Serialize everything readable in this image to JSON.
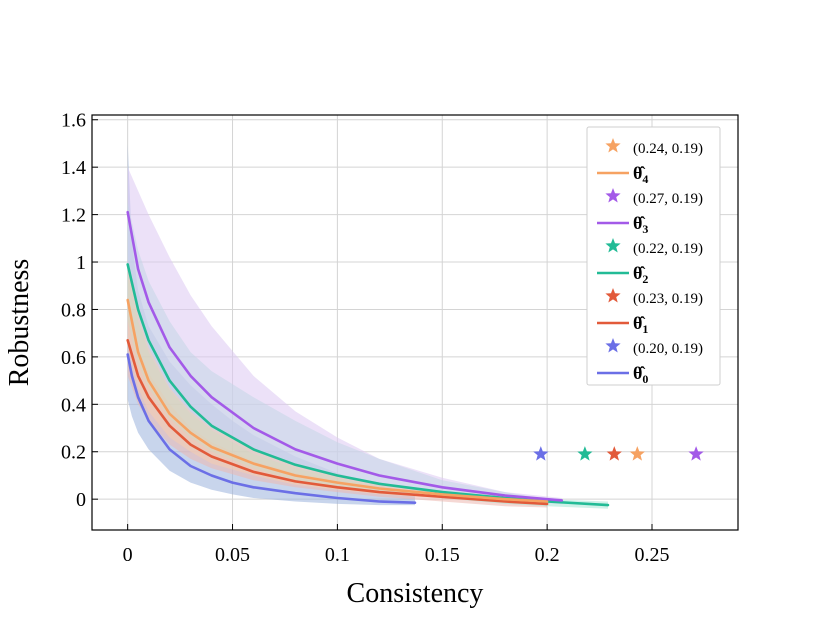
{
  "chart_data": {
    "type": "line",
    "title": "",
    "xlabel": "Consistency",
    "ylabel": "Robustness",
    "xlim": [
      -0.017,
      0.291
    ],
    "ylim": [
      -0.13,
      1.62
    ],
    "xticks": [
      0,
      0.05,
      0.1,
      0.15,
      0.2,
      0.25
    ],
    "xtick_labels": [
      "0",
      "0.05",
      "0.1",
      "0.15",
      "0.2",
      "0.25"
    ],
    "yticks": [
      0,
      0.2,
      0.4,
      0.6,
      0.8,
      1,
      1.2,
      1.4,
      1.6
    ],
    "ytick_labels": [
      "0",
      "0.2",
      "0.4",
      "0.6",
      "0.8",
      "1",
      "1.2",
      "1.4",
      "1.6"
    ],
    "grid": true,
    "legend_position": "top-right",
    "series": [
      {
        "name": "θ̂0",
        "label_base": "θ̂",
        "label_sub": "0",
        "color": "#6b6fe6",
        "x": [
          0,
          0.002,
          0.005,
          0.01,
          0.02,
          0.03,
          0.04,
          0.05,
          0.06,
          0.08,
          0.1,
          0.12,
          0.137
        ],
        "y": [
          0.61,
          0.52,
          0.43,
          0.33,
          0.21,
          0.14,
          0.1,
          0.07,
          0.05,
          0.025,
          0.005,
          -0.01,
          -0.015
        ],
        "band": {
          "upper": [
            1.5,
            1.08,
            0.88,
            0.73,
            0.58,
            0.48,
            0.4,
            0.33,
            0.27,
            0.18,
            0.11,
            0.06,
            0.03
          ],
          "lower": [
            0.42,
            0.35,
            0.28,
            0.21,
            0.12,
            0.07,
            0.04,
            0.02,
            0.005,
            -0.01,
            -0.02,
            -0.025,
            -0.025
          ],
          "color": "#9ab3dd"
        },
        "marker": {
          "x": 0.197,
          "y": 0.19,
          "label": "(0.20, 0.19)"
        }
      },
      {
        "name": "θ̂1",
        "label_base": "θ̂",
        "label_sub": "1",
        "color": "#e25a3a",
        "x": [
          0,
          0.005,
          0.01,
          0.02,
          0.03,
          0.04,
          0.06,
          0.08,
          0.1,
          0.12,
          0.15,
          0.18,
          0.2
        ],
        "y": [
          0.67,
          0.52,
          0.43,
          0.31,
          0.23,
          0.18,
          0.115,
          0.075,
          0.05,
          0.03,
          0.01,
          -0.01,
          -0.02
        ],
        "band": {
          "upper": [
            0.8,
            0.64,
            0.53,
            0.4,
            0.3,
            0.24,
            0.16,
            0.11,
            0.08,
            0.055,
            0.03,
            0.01,
            0.0
          ],
          "lower": [
            0.52,
            0.4,
            0.33,
            0.23,
            0.17,
            0.13,
            0.08,
            0.05,
            0.03,
            0.01,
            -0.01,
            -0.03,
            -0.035
          ],
          "color": "#ecb8b0"
        },
        "marker": {
          "x": 0.232,
          "y": 0.19,
          "label": "(0.23, 0.19)"
        }
      },
      {
        "name": "θ̂2",
        "label_base": "θ̂",
        "label_sub": "2",
        "color": "#22bb96",
        "x": [
          0,
          0.005,
          0.01,
          0.02,
          0.03,
          0.04,
          0.06,
          0.08,
          0.1,
          0.12,
          0.15,
          0.18,
          0.2,
          0.229
        ],
        "y": [
          0.99,
          0.8,
          0.67,
          0.5,
          0.39,
          0.31,
          0.21,
          0.145,
          0.1,
          0.065,
          0.03,
          0.005,
          -0.01,
          -0.025
        ],
        "band": {
          "upper": [
            1.25,
            1.05,
            0.92,
            0.75,
            0.62,
            0.54,
            0.43,
            0.33,
            0.24,
            0.17,
            0.08,
            0.03,
            0.0,
            -0.01
          ],
          "lower": [
            0.75,
            0.57,
            0.47,
            0.34,
            0.26,
            0.2,
            0.13,
            0.08,
            0.05,
            0.03,
            0.005,
            -0.02,
            -0.03,
            -0.04
          ],
          "color": "#a6e6d5"
        },
        "marker": {
          "x": 0.218,
          "y": 0.19,
          "label": "(0.22, 0.19)"
        }
      },
      {
        "name": "θ̂3",
        "label_base": "θ̂",
        "label_sub": "3",
        "color": "#a35ae8",
        "x": [
          0,
          0.005,
          0.01,
          0.02,
          0.03,
          0.04,
          0.06,
          0.08,
          0.1,
          0.12,
          0.15,
          0.18,
          0.207
        ],
        "y": [
          1.21,
          0.97,
          0.83,
          0.64,
          0.52,
          0.43,
          0.3,
          0.21,
          0.15,
          0.1,
          0.05,
          0.015,
          -0.005
        ],
        "band": {
          "upper": [
            1.4,
            1.3,
            1.2,
            1.02,
            0.86,
            0.73,
            0.52,
            0.37,
            0.26,
            0.17,
            0.09,
            0.03,
            0.005
          ],
          "lower": [
            0.95,
            0.75,
            0.62,
            0.46,
            0.36,
            0.29,
            0.19,
            0.13,
            0.09,
            0.05,
            0.015,
            -0.01,
            -0.02
          ],
          "color": "#dcc8f3"
        },
        "marker": {
          "x": 0.271,
          "y": 0.19,
          "label": "(0.27, 0.19)"
        }
      },
      {
        "name": "θ̂4",
        "label_base": "θ̂",
        "label_sub": "4",
        "color": "#f6a262",
        "x": [
          0,
          0.005,
          0.01,
          0.02,
          0.03,
          0.04,
          0.06,
          0.08,
          0.1,
          0.12,
          0.15,
          0.18,
          0.2
        ],
        "y": [
          0.84,
          0.62,
          0.5,
          0.36,
          0.28,
          0.22,
          0.15,
          0.1,
          0.07,
          0.045,
          0.02,
          0.0,
          -0.01
        ],
        "band": {
          "upper": [
            1.0,
            0.78,
            0.64,
            0.47,
            0.37,
            0.3,
            0.21,
            0.14,
            0.1,
            0.07,
            0.035,
            0.01,
            0.0
          ],
          "lower": [
            0.65,
            0.47,
            0.37,
            0.26,
            0.2,
            0.15,
            0.1,
            0.06,
            0.04,
            0.02,
            0.005,
            -0.015,
            -0.025
          ],
          "color": "#f6ceb0"
        },
        "marker": {
          "x": 0.243,
          "y": 0.19,
          "label": "(0.24, 0.19)"
        }
      }
    ],
    "legend_order": [
      4,
      3,
      2,
      1,
      0
    ]
  }
}
